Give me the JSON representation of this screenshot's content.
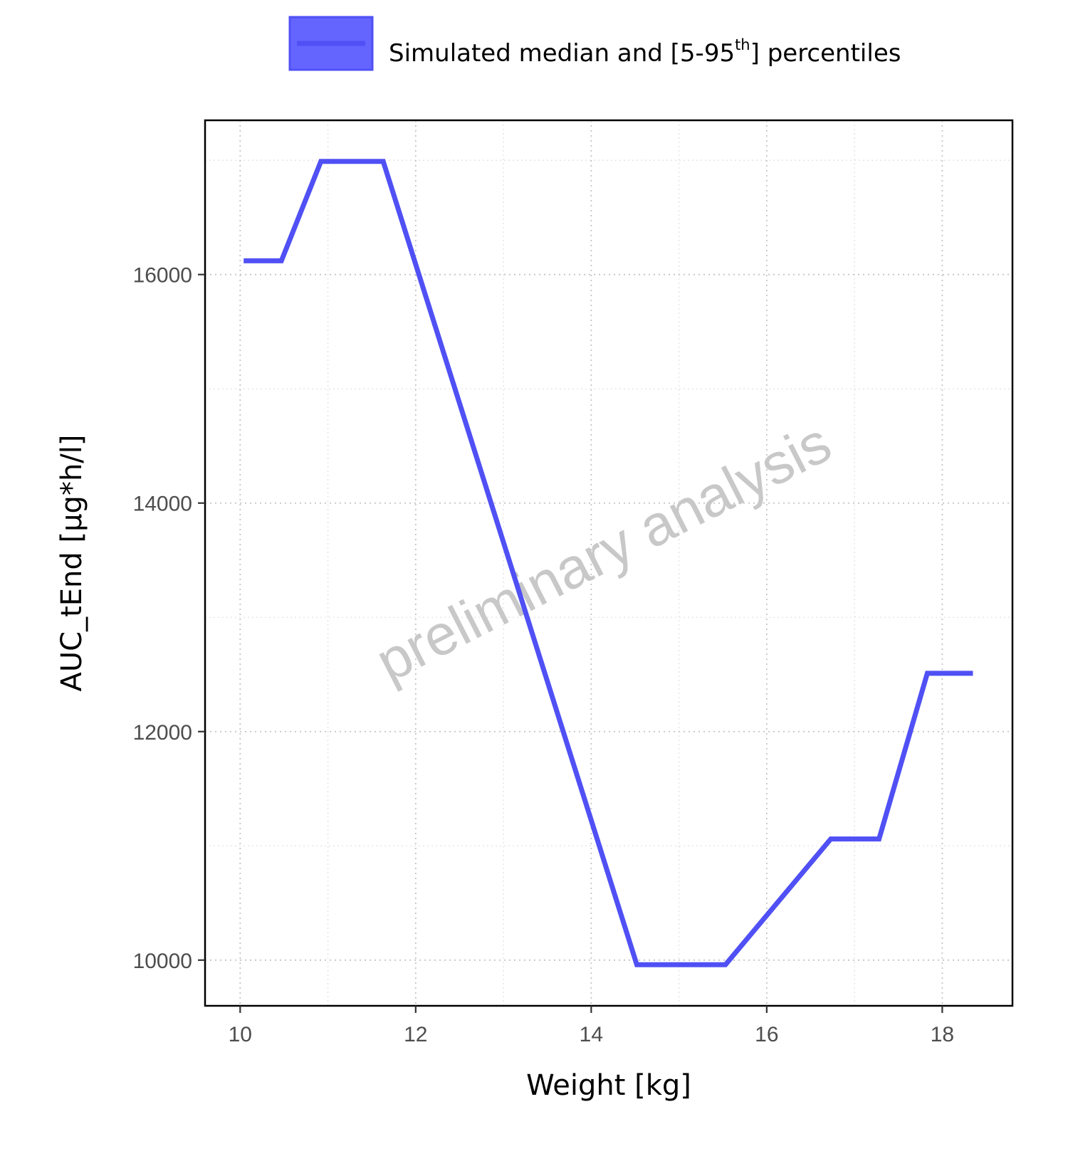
{
  "chart_data": {
    "type": "line",
    "title": "",
    "xlabel": "Weight [kg]",
    "ylabel": "AUC_tEnd [µg*h/l]",
    "xlim": [
      9.6,
      18.8
    ],
    "ylim": [
      9600,
      17350
    ],
    "x_ticks": [
      10,
      12,
      14,
      16,
      18
    ],
    "y_ticks": [
      10000,
      12000,
      14000,
      16000
    ],
    "grid": true,
    "grid_style": "dotted",
    "legend_position": "top",
    "watermark": "preliminary analysis",
    "series": [
      {
        "name": "Simulated median and [5-95th] percentiles",
        "color": "#5050f5",
        "band_fill": "#6464ff",
        "x": [
          10.04,
          10.47,
          10.92,
          11.63,
          14.52,
          15.53,
          16.73,
          17.28,
          17.83,
          18.35
        ],
        "y": [
          16120,
          16120,
          16990,
          16990,
          9960,
          9960,
          11060,
          11060,
          12510,
          12510
        ]
      }
    ]
  },
  "legend": {
    "label_main": "Simulated median and [5-95",
    "label_sup": "th",
    "label_end": "] percentiles"
  }
}
